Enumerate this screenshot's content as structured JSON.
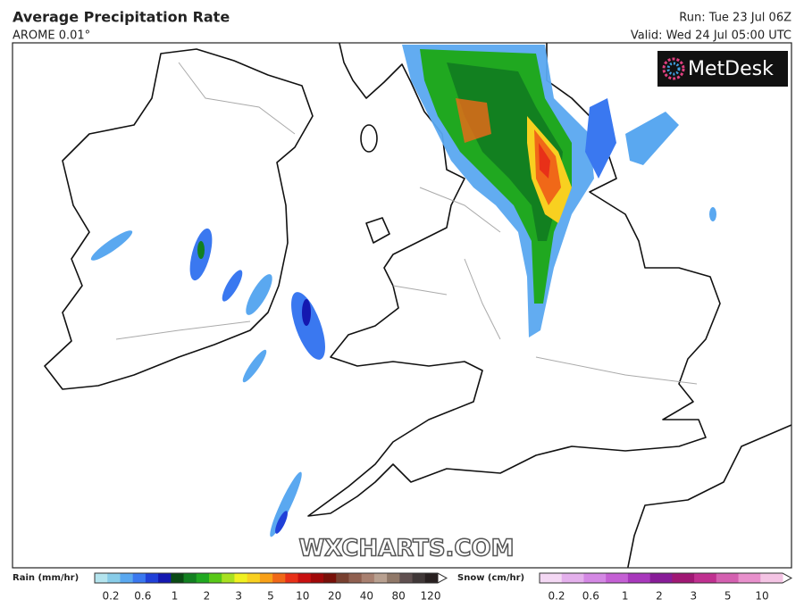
{
  "header": {
    "title": "Average Precipitation Rate",
    "model": "AROME 0.01°",
    "run": "Run: Tue 23 Jul 06Z",
    "valid": "Valid: Wed 24 Jul 05:00 UTC"
  },
  "logo": "MetDesk",
  "watermark": "WXCHARTS.COM",
  "legend": {
    "rain": {
      "label": "Rain (mm/hr)",
      "ticks": [
        "0.2",
        "0.6",
        "1",
        "2",
        "3",
        "5",
        "10",
        "20",
        "40",
        "80",
        "120"
      ],
      "colors": [
        "#b4e4ee",
        "#88cce8",
        "#5aa8f0",
        "#3a78f0",
        "#2040d8",
        "#1418b0",
        "#0a4a14",
        "#128020",
        "#20a820",
        "#58c818",
        "#a8e020",
        "#f0f020",
        "#f8d020",
        "#f8a018",
        "#f06818",
        "#e83018",
        "#c81010",
        "#a00808",
        "#781008",
        "#784030",
        "#906050",
        "#a88070",
        "#b8a090",
        "#907868",
        "#605050",
        "#403838",
        "#282020"
      ]
    },
    "snow": {
      "label": "Snow (cm/hr)",
      "ticks": [
        "0.2",
        "0.6",
        "1",
        "2",
        "3",
        "5",
        "10"
      ],
      "colors": [
        "#f4d8f4",
        "#e4b0ec",
        "#d488e4",
        "#c460d4",
        "#a838bc",
        "#881c98",
        "#a01874",
        "#c03090",
        "#d460b0",
        "#e890cc",
        "#f4c4e4"
      ]
    }
  }
}
